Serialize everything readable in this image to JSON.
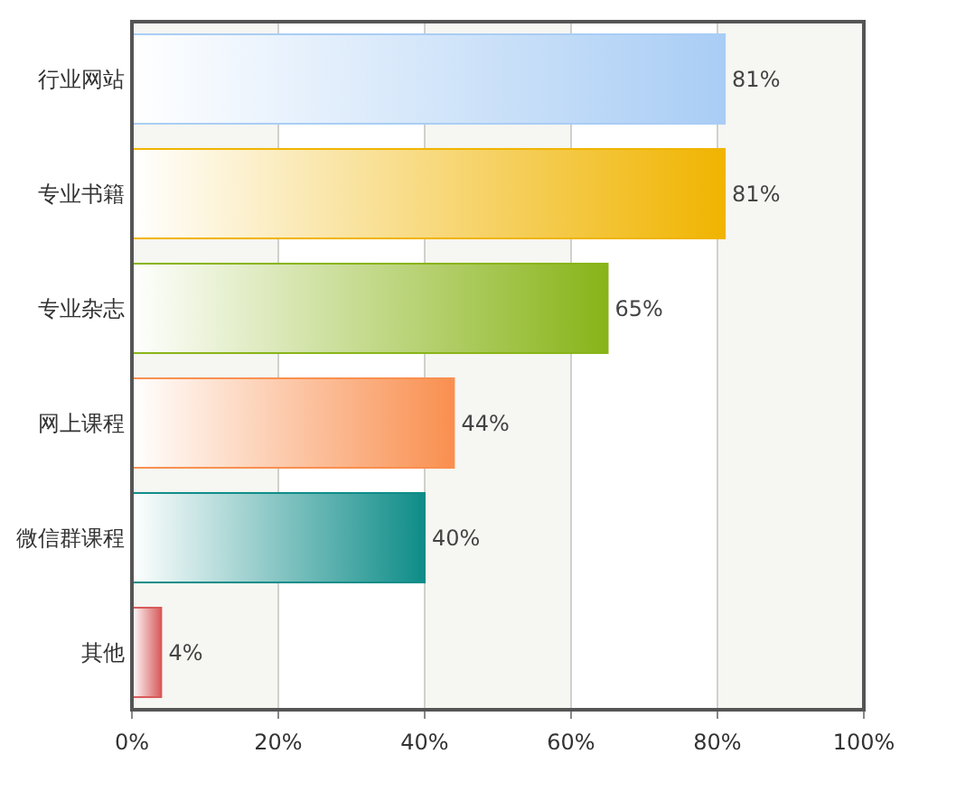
{
  "chart_data": {
    "type": "bar",
    "orientation": "horizontal",
    "categories": [
      "行业网站",
      "专业书籍",
      "专业杂志",
      "网上课程",
      "微信群课程",
      "其他"
    ],
    "values": [
      81,
      81,
      65,
      44,
      40,
      4
    ],
    "value_labels": [
      "81%",
      "81%",
      "65%",
      "44%",
      "40%",
      "4%"
    ],
    "colors": [
      "#a9cdf5",
      "#f0b400",
      "#88b418",
      "#f98f4f",
      "#0e8c88",
      "#d75a5a"
    ],
    "xlim": [
      0,
      100
    ],
    "xticks": [
      {
        "value": 0,
        "label": "0%"
      },
      {
        "value": 20,
        "label": "20%"
      },
      {
        "value": 40,
        "label": "40%"
      },
      {
        "value": 60,
        "label": "60%"
      },
      {
        "value": 80,
        "label": "80%"
      },
      {
        "value": 100,
        "label": "100%"
      }
    ],
    "grid": "x"
  }
}
